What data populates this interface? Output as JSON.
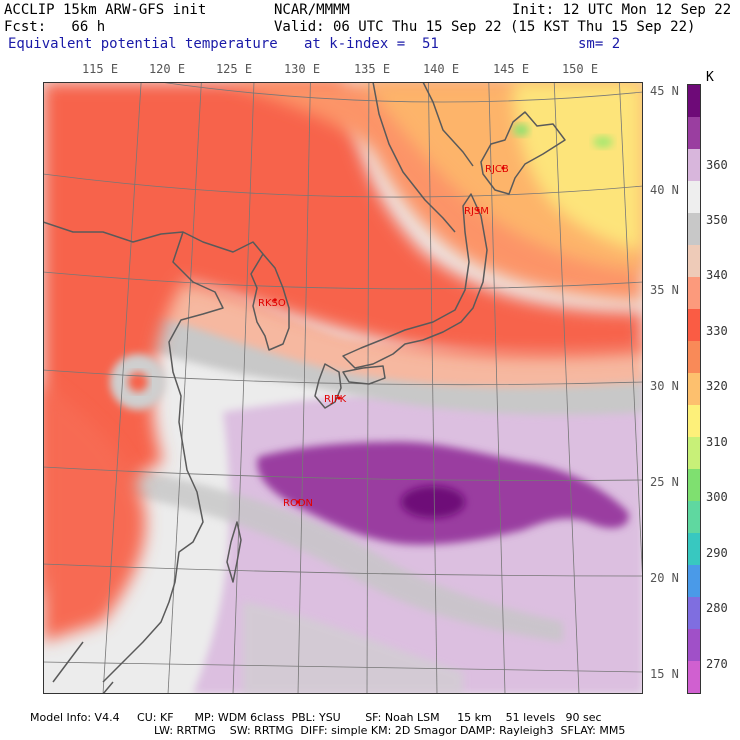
{
  "header": {
    "model": "ACCLIP 15km ARW-GFS init",
    "center": "NCAR/MMMM",
    "init": "Init: 12 UTC Mon 12 Sep 22",
    "fcst": "Fcst:   66 h",
    "valid": "Valid: 06 UTC Thu 15 Sep 22 (15 KST Thu 15 Sep 22)",
    "field": "Equivalent potential temperature",
    "level": "at k-index =  51",
    "smooth": "sm= 2"
  },
  "lon_labels": [
    "115 E",
    "120 E",
    "125 E",
    "130 E",
    "135 E",
    "140 E",
    "145 E",
    "150 E"
  ],
  "lat_labels": [
    "45 N",
    "40 N",
    "35 N",
    "30 N",
    "25 N",
    "20 N",
    "15 N"
  ],
  "colorbar": {
    "unit": "K",
    "labels": [
      "360",
      "350",
      "340",
      "330",
      "320",
      "310",
      "300",
      "290",
      "280",
      "270"
    ],
    "colors": [
      "#6e0a78",
      "#9a3ea0",
      "#d8b6dc",
      "#eeeeee",
      "#c8c8c8",
      "#eecbb8",
      "#fc9a7c",
      "#fa5c44",
      "#f98a58",
      "#fdc06e",
      "#fdf07a",
      "#c8f078",
      "#7fe070",
      "#5fd8a0",
      "#38c8c0",
      "#4a9ae8",
      "#7f6ee0",
      "#a050c8",
      "#d060d0"
    ]
  },
  "stations": [
    {
      "id": "RJCB"
    },
    {
      "id": "RJSM"
    },
    {
      "id": "RKSO"
    },
    {
      "id": "RJFK"
    },
    {
      "id": "RODN"
    }
  ],
  "footer": {
    "line1": "Model Info: V4.4     CU: KF      MP: WDM 6class  PBL: YSU       SF: Noah LSM     15 km    51 levels   90 sec",
    "line2": "LW: RRTMG    SW: RRTMG  DIFF: simple KM: 2D Smagor DAMP: Rayleigh3  SFLAY: MM5"
  }
}
